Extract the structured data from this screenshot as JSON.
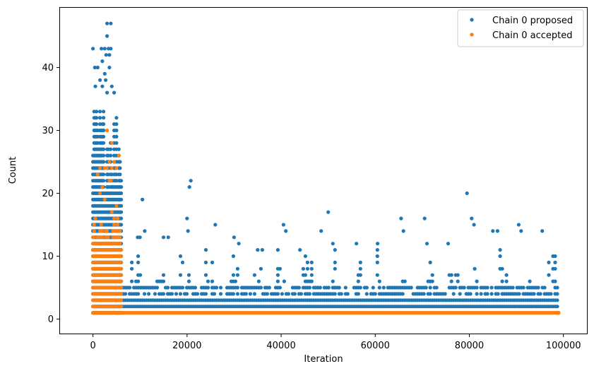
{
  "chart_data": {
    "type": "scatter",
    "xlabel": "Iteration",
    "ylabel": "Count",
    "xlim": [
      -7000,
      105000
    ],
    "ylim": [
      -2.3,
      49.5
    ],
    "xticks": [
      0,
      20000,
      40000,
      60000,
      80000,
      100000
    ],
    "yticks": [
      0,
      10,
      20,
      30,
      40
    ],
    "legend_position": "top-right",
    "grid": false,
    "series": [
      {
        "name": "Chain 0 proposed",
        "color": "#1f77b4",
        "description_of_spread": "Dense band at counts 2-5 across iterations 6000-99000 with periodic clusters of higher counts (up to ~22); during iterations 0-6000 counts spread from 1 to ~47.",
        "points": [
          [
            0,
            43
          ],
          [
            400,
            40
          ],
          [
            500,
            37
          ],
          [
            1000,
            40
          ],
          [
            1800,
            43
          ],
          [
            2000,
            41
          ],
          [
            2500,
            43
          ],
          [
            2800,
            42
          ],
          [
            3000,
            47
          ],
          [
            3000,
            45
          ],
          [
            3300,
            43
          ],
          [
            3500,
            42
          ],
          [
            3800,
            47
          ],
          [
            3800,
            43
          ],
          [
            3500,
            40
          ],
          [
            2500,
            39
          ],
          [
            2700,
            38
          ],
          [
            1500,
            38
          ],
          [
            2000,
            37
          ],
          [
            3000,
            36
          ],
          [
            4000,
            37
          ],
          [
            4500,
            36
          ],
          [
            10500,
            19
          ],
          [
            11000,
            14
          ],
          [
            10000,
            13
          ],
          [
            9500,
            13
          ],
          [
            15000,
            13
          ],
          [
            16000,
            13
          ],
          [
            20000,
            16
          ],
          [
            20200,
            14
          ],
          [
            20500,
            21
          ],
          [
            20800,
            22
          ],
          [
            26000,
            15
          ],
          [
            30000,
            13
          ],
          [
            31000,
            12
          ],
          [
            35000,
            11
          ],
          [
            36000,
            11
          ],
          [
            40500,
            15
          ],
          [
            41000,
            14
          ],
          [
            44000,
            11
          ],
          [
            48500,
            14
          ],
          [
            50000,
            17
          ],
          [
            51000,
            12
          ],
          [
            56000,
            12
          ],
          [
            60500,
            12
          ],
          [
            65500,
            16
          ],
          [
            66000,
            14
          ],
          [
            70500,
            16
          ],
          [
            71000,
            12
          ],
          [
            75500,
            12
          ],
          [
            79500,
            20
          ],
          [
            80500,
            16
          ],
          [
            81000,
            15
          ],
          [
            85000,
            14
          ],
          [
            86000,
            14
          ],
          [
            90500,
            15
          ],
          [
            91000,
            14
          ],
          [
            95500,
            14
          ]
        ]
      },
      {
        "name": "Chain 0 accepted",
        "color": "#ff7f0e",
        "description_of_spread": "Iterations 0-6000: counts spread from 1 to ~30; after iteration 6000 essentially constant at 1.",
        "points": [
          [
            3000,
            30
          ],
          [
            4000,
            28
          ],
          [
            5500,
            26
          ],
          [
            3500,
            25
          ],
          [
            4500,
            25
          ],
          [
            3000,
            24
          ],
          [
            4000,
            24
          ],
          [
            1500,
            24
          ],
          [
            2500,
            24
          ],
          [
            5000,
            24
          ],
          [
            1000,
            23
          ],
          [
            3500,
            22
          ],
          [
            3800,
            22
          ],
          [
            2000,
            21
          ],
          [
            1500,
            20
          ],
          [
            2500,
            19
          ],
          [
            5000,
            18
          ],
          [
            4000,
            17
          ],
          [
            500,
            16
          ],
          [
            6000,
            1
          ],
          [
            99000,
            1
          ]
        ]
      }
    ]
  }
}
